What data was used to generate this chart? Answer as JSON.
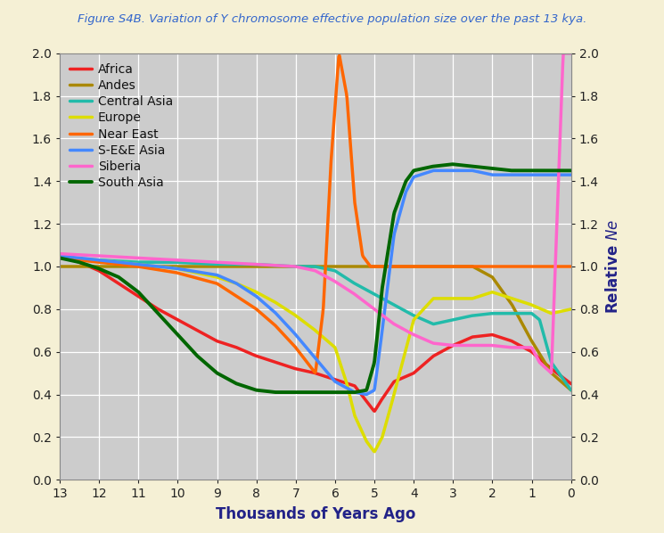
{
  "title": "Figure S4B. Variation of Y chromosome effective population size over the past 13 kya.",
  "xlabel": "Thousands of Years Ago",
  "ylabel": "Relative Ne",
  "background_color": "#f5f0d5",
  "plot_bg_color": "#cccccc",
  "title_color": "#3366cc",
  "xlabel_color": "#222288",
  "ylabel_color": "#222288",
  "xlim": [
    13,
    0
  ],
  "ylim": [
    0.0,
    2.0
  ],
  "xticks": [
    13,
    12,
    11,
    10,
    9,
    8,
    7,
    6,
    5,
    4,
    3,
    2,
    1,
    0
  ],
  "yticks": [
    0.0,
    0.2,
    0.4,
    0.6,
    0.8,
    1.0,
    1.2,
    1.4,
    1.6,
    1.8,
    2.0
  ],
  "series": {
    "Africa": {
      "color": "#ee2222",
      "lw": 2.5,
      "x": [
        13,
        12.5,
        12,
        11.5,
        11,
        10.5,
        10,
        9.5,
        9,
        8.5,
        8,
        7.5,
        7,
        6.5,
        6,
        5.5,
        5,
        4.8,
        4.5,
        4,
        3.5,
        3,
        2.5,
        2,
        1.5,
        1,
        0.5,
        0.0
      ],
      "y": [
        1.05,
        1.02,
        0.98,
        0.92,
        0.86,
        0.8,
        0.75,
        0.7,
        0.65,
        0.62,
        0.58,
        0.55,
        0.52,
        0.5,
        0.47,
        0.44,
        0.32,
        0.38,
        0.46,
        0.5,
        0.58,
        0.63,
        0.67,
        0.68,
        0.65,
        0.6,
        0.52,
        0.45
      ]
    },
    "Andes": {
      "color": "#aa8800",
      "lw": 2.5,
      "x": [
        13,
        12,
        11,
        10,
        9,
        8,
        7,
        6,
        5,
        4,
        3,
        2.5,
        2,
        1.5,
        1,
        0.5,
        0.0
      ],
      "y": [
        1.0,
        1.0,
        1.0,
        1.0,
        1.0,
        1.0,
        1.0,
        1.0,
        1.0,
        1.0,
        1.0,
        1.0,
        0.95,
        0.82,
        0.65,
        0.5,
        0.42
      ]
    },
    "Central Asia": {
      "color": "#22bbaa",
      "lw": 2.5,
      "x": [
        13,
        12,
        11,
        10,
        9,
        8,
        7,
        6.5,
        6,
        5.5,
        5,
        4.5,
        4,
        3.5,
        3,
        2.5,
        2,
        1.5,
        1,
        0.8,
        0.5,
        0.0
      ],
      "y": [
        1.04,
        1.03,
        1.02,
        1.02,
        1.01,
        1.01,
        1.0,
        1.0,
        0.98,
        0.92,
        0.87,
        0.82,
        0.77,
        0.73,
        0.75,
        0.77,
        0.78,
        0.78,
        0.78,
        0.75,
        0.55,
        0.42
      ]
    },
    "Europe": {
      "color": "#dddd00",
      "lw": 2.5,
      "x": [
        13,
        12,
        11,
        10,
        9.5,
        9,
        8.5,
        8,
        7.5,
        7,
        6.5,
        6,
        5.7,
        5.5,
        5.2,
        5,
        4.8,
        4.5,
        4,
        3.5,
        3,
        2.5,
        2,
        1.5,
        1,
        0.5,
        0.0
      ],
      "y": [
        1.04,
        1.03,
        1.01,
        0.99,
        0.97,
        0.95,
        0.92,
        0.88,
        0.83,
        0.77,
        0.7,
        0.62,
        0.45,
        0.3,
        0.18,
        0.13,
        0.2,
        0.4,
        0.75,
        0.85,
        0.85,
        0.85,
        0.88,
        0.85,
        0.82,
        0.78,
        0.8
      ]
    },
    "Near East": {
      "color": "#ff6600",
      "lw": 2.5,
      "x": [
        13,
        12,
        11,
        10,
        9,
        8.5,
        8,
        7.5,
        7,
        6.5,
        6.3,
        6.1,
        5.9,
        5.7,
        5.5,
        5.3,
        5.1,
        5.0,
        4.8,
        4.5,
        4,
        3,
        2,
        1,
        0.0
      ],
      "y": [
        1.04,
        1.02,
        1.0,
        0.97,
        0.92,
        0.86,
        0.8,
        0.72,
        0.62,
        0.5,
        0.8,
        1.5,
        2.0,
        1.8,
        1.3,
        1.05,
        1.0,
        1.0,
        1.0,
        1.0,
        1.0,
        1.0,
        1.0,
        1.0,
        1.0
      ]
    },
    "S-E&E Asia": {
      "color": "#4488ff",
      "lw": 2.5,
      "x": [
        13,
        12,
        11,
        10,
        9,
        8.5,
        8,
        7.5,
        7,
        6.5,
        6,
        5.5,
        5.2,
        5.0,
        4.8,
        4.5,
        4.2,
        4,
        3.5,
        3,
        2.5,
        2,
        1.5,
        1,
        0.5,
        0.0
      ],
      "y": [
        1.05,
        1.03,
        1.01,
        0.99,
        0.96,
        0.92,
        0.86,
        0.78,
        0.68,
        0.57,
        0.46,
        0.41,
        0.4,
        0.42,
        0.7,
        1.15,
        1.35,
        1.42,
        1.45,
        1.45,
        1.45,
        1.43,
        1.43,
        1.43,
        1.43,
        1.43
      ]
    },
    "Siberia": {
      "color": "#ff66cc",
      "lw": 2.5,
      "x": [
        13,
        12,
        11,
        10,
        9,
        8,
        7,
        6.5,
        6,
        5.5,
        5,
        4.5,
        4,
        3.5,
        3,
        2.5,
        2,
        1.5,
        1.2,
        1.0,
        0.8,
        0.5,
        0.2,
        0.0
      ],
      "y": [
        1.06,
        1.05,
        1.04,
        1.03,
        1.02,
        1.01,
        1.0,
        0.98,
        0.93,
        0.87,
        0.8,
        0.73,
        0.68,
        0.64,
        0.63,
        0.63,
        0.63,
        0.62,
        0.62,
        0.62,
        0.55,
        0.5,
        2.0,
        2.0
      ]
    },
    "South Asia": {
      "color": "#006600",
      "lw": 2.8,
      "x": [
        13,
        12.5,
        12,
        11.5,
        11,
        10.5,
        10,
        9.5,
        9,
        8.5,
        8,
        7.5,
        7,
        6.5,
        6,
        5.5,
        5.2,
        5.0,
        4.8,
        4.5,
        4.2,
        4,
        3.5,
        3,
        2.5,
        2,
        1.5,
        1,
        0.5,
        0.0
      ],
      "y": [
        1.04,
        1.02,
        0.99,
        0.95,
        0.88,
        0.78,
        0.68,
        0.58,
        0.5,
        0.45,
        0.42,
        0.41,
        0.41,
        0.41,
        0.41,
        0.41,
        0.42,
        0.55,
        0.9,
        1.25,
        1.4,
        1.45,
        1.47,
        1.48,
        1.47,
        1.46,
        1.45,
        1.45,
        1.45,
        1.45
      ]
    }
  }
}
